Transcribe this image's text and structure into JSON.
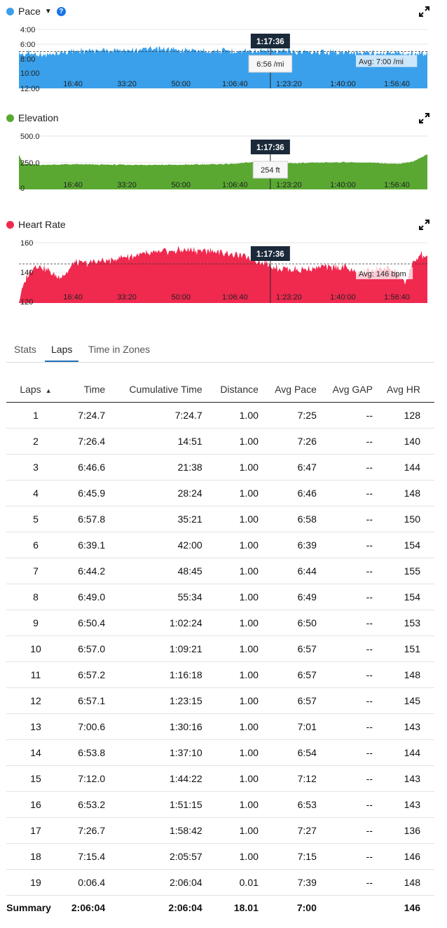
{
  "chart_data": [
    {
      "type": "area",
      "title": "Pace",
      "color": "#3aa0eb",
      "y_ticks": [
        "4:00",
        "6:00",
        "8:00",
        "10:00",
        "12:00"
      ],
      "y_inverted": true,
      "ylim_min_per_mi": [
        4,
        12
      ],
      "x_ticks": [
        "16:40",
        "33:20",
        "50:00",
        "1:06:40",
        "1:23:20",
        "1:40:00",
        "1:56:40"
      ],
      "x_tick_seconds": [
        1000,
        2000,
        3000,
        4000,
        5000,
        6000,
        7000
      ],
      "x_range_seconds": [
        0,
        7564
      ],
      "profile": {
        "x_seconds": [
          0,
          300,
          600,
          1000,
          1500,
          2000,
          2500,
          3000,
          3500,
          4000,
          4500,
          5000,
          5500,
          6000,
          6500,
          7000,
          7200,
          7564
        ],
        "values_min_per_mi": [
          7.3,
          7.3,
          7.4,
          6.9,
          6.85,
          6.75,
          6.7,
          6.8,
          6.9,
          6.9,
          6.95,
          7.0,
          7.0,
          7.1,
          7.2,
          7.2,
          7.3,
          7.2
        ]
      },
      "average_line_min_per_mi": 7.0,
      "avg_label": "Avg: 7:00 /mi",
      "cursor_time": "1:17:36",
      "cursor_seconds": 4656,
      "cursor_value": "6:56 /mi"
    },
    {
      "type": "area",
      "title": "Elevation",
      "color": "#5aa832",
      "y_ticks": [
        "500.0",
        "250.0",
        "0"
      ],
      "ylim_ft": [
        0,
        500
      ],
      "x_ticks": [
        "16:40",
        "33:20",
        "50:00",
        "1:06:40",
        "1:23:20",
        "1:40:00",
        "1:56:40"
      ],
      "x_tick_seconds": [
        1000,
        2000,
        3000,
        4000,
        5000,
        6000,
        7000
      ],
      "x_range_seconds": [
        0,
        7564
      ],
      "profile": {
        "x_seconds": [
          0,
          80,
          400,
          1000,
          2000,
          3000,
          4000,
          4300,
          4700,
          5000,
          5500,
          6000,
          6500,
          7000,
          7300,
          7564
        ],
        "values_ft": [
          330,
          240,
          230,
          235,
          230,
          230,
          240,
          255,
          254,
          245,
          250,
          255,
          250,
          240,
          260,
          330
        ]
      },
      "cursor_time": "1:17:36",
      "cursor_seconds": 4656,
      "cursor_value": "254 ft"
    },
    {
      "type": "area",
      "title": "Heart Rate",
      "color": "#f0294f",
      "y_ticks": [
        "160",
        "140",
        "120"
      ],
      "ylim_bpm": [
        120,
        165
      ],
      "x_ticks": [
        "16:40",
        "33:20",
        "50:00",
        "1:06:40",
        "1:23:20",
        "1:40:00",
        "1:56:40"
      ],
      "x_tick_seconds": [
        1000,
        2000,
        3000,
        4000,
        5000,
        6000,
        7000
      ],
      "x_range_seconds": [
        0,
        7564
      ],
      "profile": {
        "x_seconds": [
          0,
          150,
          300,
          500,
          700,
          900,
          1000,
          1300,
          1700,
          2000,
          2500,
          3000,
          3500,
          4000,
          4300,
          4600,
          4800,
          5200,
          5600,
          6000,
          6300,
          6700,
          7000,
          7150,
          7300,
          7450,
          7564
        ],
        "values_bpm": [
          122,
          138,
          145,
          143,
          137,
          140,
          146,
          147,
          148,
          151,
          153,
          155,
          155,
          152,
          150,
          146,
          143,
          142,
          144,
          144,
          140,
          143,
          141,
          133,
          146,
          152,
          150
        ]
      },
      "average_line_bpm": 146,
      "avg_label": "Avg: 146 bpm",
      "cursor_time": "1:17:36",
      "cursor_seconds": 4656
    }
  ],
  "help_glyph": "?",
  "tabs": [
    {
      "label": "Stats"
    },
    {
      "label": "Laps"
    },
    {
      "label": "Time in Zones"
    }
  ],
  "laps": {
    "headers": [
      "Laps",
      "Time",
      "Cumulative Time",
      "Distance",
      "Avg Pace",
      "Avg GAP",
      "Avg HR"
    ],
    "sort_glyph": "▲",
    "rows": [
      [
        "1",
        "7:24.7",
        "7:24.7",
        "1.00",
        "7:25",
        "--",
        "128"
      ],
      [
        "2",
        "7:26.4",
        "14:51",
        "1.00",
        "7:26",
        "--",
        "140"
      ],
      [
        "3",
        "6:46.6",
        "21:38",
        "1.00",
        "6:47",
        "--",
        "144"
      ],
      [
        "4",
        "6:45.9",
        "28:24",
        "1.00",
        "6:46",
        "--",
        "148"
      ],
      [
        "5",
        "6:57.8",
        "35:21",
        "1.00",
        "6:58",
        "--",
        "150"
      ],
      [
        "6",
        "6:39.1",
        "42:00",
        "1.00",
        "6:39",
        "--",
        "154"
      ],
      [
        "7",
        "6:44.2",
        "48:45",
        "1.00",
        "6:44",
        "--",
        "155"
      ],
      [
        "8",
        "6:49.0",
        "55:34",
        "1.00",
        "6:49",
        "--",
        "154"
      ],
      [
        "9",
        "6:50.4",
        "1:02:24",
        "1.00",
        "6:50",
        "--",
        "153"
      ],
      [
        "10",
        "6:57.0",
        "1:09:21",
        "1.00",
        "6:57",
        "--",
        "151"
      ],
      [
        "11",
        "6:57.2",
        "1:16:18",
        "1.00",
        "6:57",
        "--",
        "148"
      ],
      [
        "12",
        "6:57.1",
        "1:23:15",
        "1.00",
        "6:57",
        "--",
        "145"
      ],
      [
        "13",
        "7:00.6",
        "1:30:16",
        "1.00",
        "7:01",
        "--",
        "143"
      ],
      [
        "14",
        "6:53.8",
        "1:37:10",
        "1.00",
        "6:54",
        "--",
        "144"
      ],
      [
        "15",
        "7:12.0",
        "1:44:22",
        "1.00",
        "7:12",
        "--",
        "143"
      ],
      [
        "16",
        "6:53.2",
        "1:51:15",
        "1.00",
        "6:53",
        "--",
        "143"
      ],
      [
        "17",
        "7:26.7",
        "1:58:42",
        "1.00",
        "7:27",
        "--",
        "136"
      ],
      [
        "18",
        "7:15.4",
        "2:05:57",
        "1.00",
        "7:15",
        "--",
        "146"
      ],
      [
        "19",
        "0:06.4",
        "2:06:04",
        "0.01",
        "7:39",
        "--",
        "148"
      ]
    ],
    "summary": [
      "Summary",
      "2:06:04",
      "2:06:04",
      "18.01",
      "7:00",
      "",
      "146"
    ]
  }
}
